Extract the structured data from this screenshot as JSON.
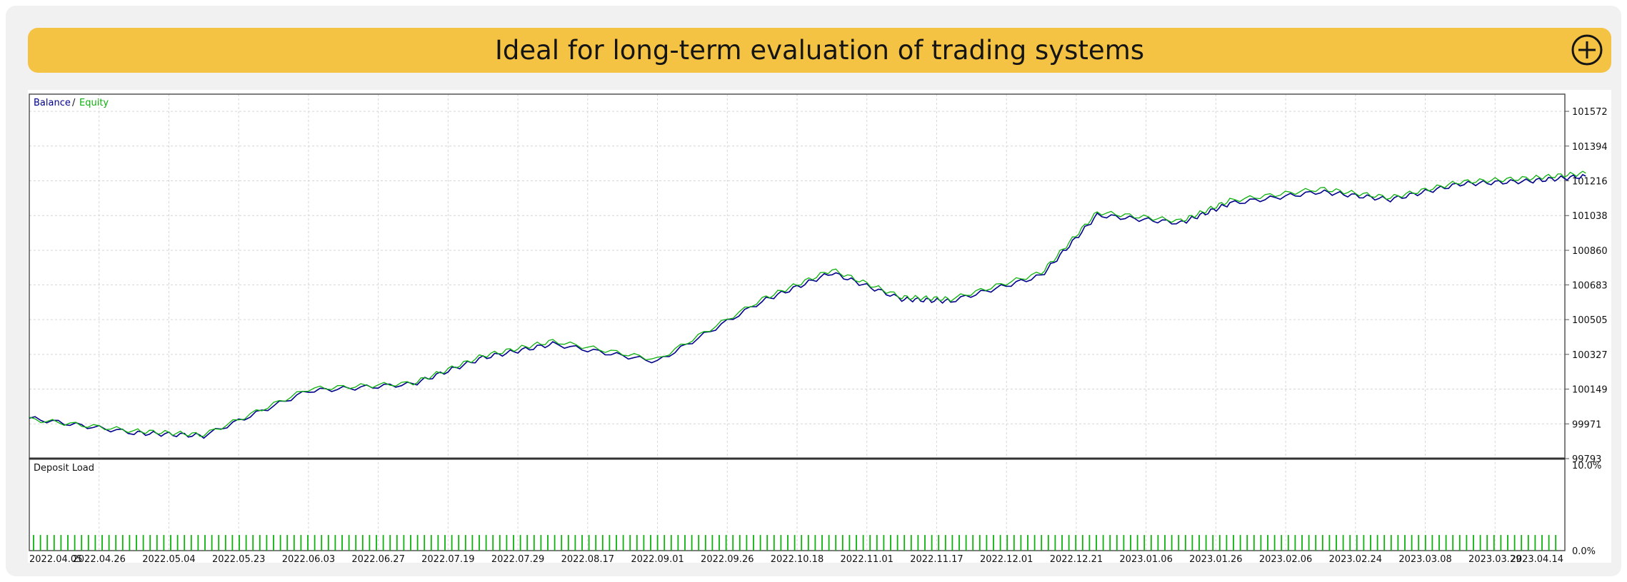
{
  "banner": {
    "title": "Ideal for long-term evaluation of trading systems",
    "expand_icon": "plus-circle-icon",
    "color": "#f4c343"
  },
  "chart_data": [
    {
      "type": "line",
      "legend": {
        "balance_label": "Balance",
        "separator": "/",
        "equity_label": "Equity",
        "placement": "top-left"
      },
      "colors": {
        "balance": "#00008b",
        "equity": "#0eb10e"
      },
      "grid": true,
      "ylim": [
        99793,
        101660
      ],
      "yticks": [
        "101572",
        "101394",
        "101216",
        "101038",
        "100860",
        "100683",
        "100505",
        "100327",
        "100149",
        "99971",
        "99793"
      ],
      "xticks": [
        "2022.04.05",
        "2022.04.26",
        "2022.05.04",
        "2022.05.23",
        "2022.06.03",
        "2022.06.27",
        "2022.07.19",
        "2022.07.29",
        "2022.08.17",
        "2022.09.01",
        "2022.09.26",
        "2022.10.18",
        "2022.11.01",
        "2022.11.17",
        "2022.12.01",
        "2022.12.21",
        "2023.01.06",
        "2023.01.26",
        "2023.02.06",
        "2023.02.24",
        "2023.03.08",
        "2023.03.29",
        "2023.04.14"
      ],
      "series": [
        {
          "name": "Balance",
          "x": [
            0,
            1.5,
            2.5,
            4,
            5.5,
            6.5,
            7.5,
            9,
            10.5,
            11.5,
            12.5,
            13.2,
            14.5,
            15.3,
            16.5,
            17.2,
            18.5,
            19.5,
            20.5,
            21.5,
            22.3
          ],
          "values": [
            100000,
            99925,
            99910,
            100140,
            100175,
            100310,
            100380,
            100290,
            100600,
            100745,
            100610,
            100600,
            100730,
            101040,
            101000,
            101100,
            101160,
            101120,
            101200,
            101215,
            101240
          ]
        },
        {
          "name": "Equity",
          "x": [
            0,
            1.5,
            2.5,
            4,
            5.5,
            6.5,
            7.5,
            9,
            10.5,
            11.5,
            12.5,
            13.2,
            14.5,
            15.3,
            16.5,
            17.2,
            18.5,
            19.5,
            20.5,
            21.5,
            22.3
          ],
          "values": [
            99995,
            99935,
            99915,
            100150,
            100180,
            100320,
            100395,
            100300,
            100610,
            100760,
            100620,
            100610,
            100745,
            101055,
            101010,
            101115,
            101175,
            101130,
            101210,
            101230,
            101255
          ]
        }
      ]
    },
    {
      "type": "bar",
      "title": "Deposit Load",
      "yticks": [
        "10.0%",
        "0.0%"
      ],
      "ylim": [
        0,
        10
      ],
      "bar_value": 1.9,
      "bar_color": "#0eb10e"
    }
  ]
}
